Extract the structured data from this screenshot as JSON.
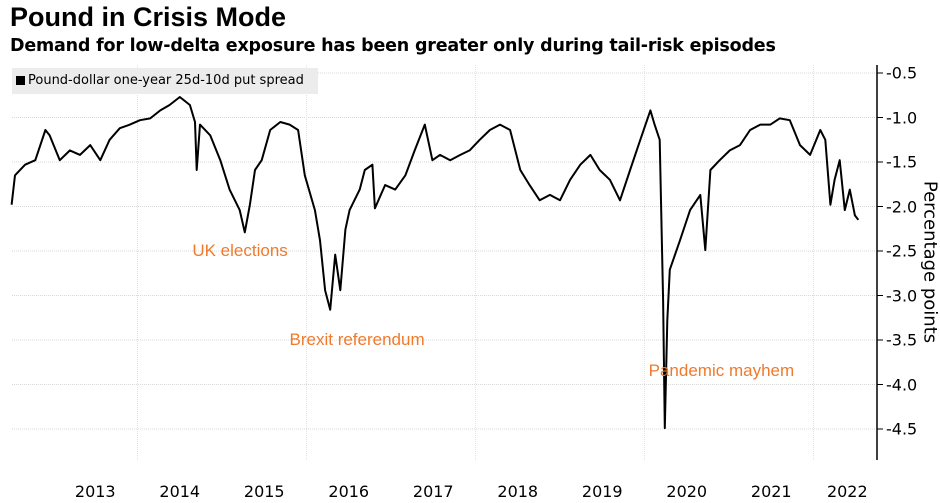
{
  "chart_data": {
    "type": "line",
    "title": "Pound in Crisis Mode",
    "subtitle": "Demand for low-delta exposure has been greater only during tail-risk episodes",
    "legend": [
      "Pound-dollar one-year 25d-10d put spread"
    ],
    "legend_placement": "top-left",
    "ylabel": "Percentage points",
    "xlabel": "",
    "ylim": [
      -4.85,
      -0.4
    ],
    "xlim": [
      2012.5,
      2022.6
    ],
    "yticks": [
      "-0.5",
      "-1.0",
      "-1.5",
      "-2.0",
      "-2.5",
      "-3.0",
      "-3.5",
      "-4.0",
      "-4.5"
    ],
    "ytick_values": [
      -0.5,
      -1.0,
      -1.5,
      -2.0,
      -2.5,
      -3.0,
      -3.5,
      -4.0,
      -4.5
    ],
    "xticks": [
      "2013",
      "2014",
      "2015",
      "2016",
      "2017",
      "2018",
      "2019",
      "2020",
      "2021",
      "2022"
    ],
    "xtick_values": [
      2013.5,
      2014.5,
      2015.5,
      2016.5,
      2017.5,
      2018.5,
      2019.5,
      2020.5,
      2021.5,
      2022.4
    ],
    "grid": true,
    "series_color": "#000000",
    "annotation_color": "#f07a2c",
    "annotations": [
      {
        "text": "UK elections",
        "x": 2015.3,
        "y": -2.5
      },
      {
        "text": "Brexit referendum",
        "x": 2016.45,
        "y": -3.5
      },
      {
        "text": "Pandemic mayhem",
        "x": 2020.7,
        "y": -3.85
      }
    ],
    "series": [
      {
        "name": "Pound-dollar one-year 25d-10d put spread",
        "x": [
          2012.51,
          2012.55,
          2012.67,
          2012.79,
          2012.91,
          2012.96,
          2013.08,
          2013.2,
          2013.32,
          2013.44,
          2013.56,
          2013.67,
          2013.79,
          2013.91,
          2014.03,
          2014.15,
          2014.27,
          2014.38,
          2014.5,
          2014.62,
          2014.68,
          2014.7,
          2014.74,
          2014.86,
          2014.98,
          2015.09,
          2015.21,
          2015.27,
          2015.33,
          2015.39,
          2015.47,
          2015.57,
          2015.69,
          2015.8,
          2015.9,
          2015.98,
          2016.1,
          2016.16,
          2016.22,
          2016.28,
          2016.34,
          2016.4,
          2016.46,
          2016.51,
          2016.63,
          2016.69,
          2016.78,
          2016.81,
          2016.93,
          2017.05,
          2017.17,
          2017.28,
          2017.4,
          2017.49,
          2017.58,
          2017.7,
          2017.82,
          2017.93,
          2018.05,
          2018.17,
          2018.29,
          2018.41,
          2018.53,
          2018.64,
          2018.76,
          2018.88,
          2019.0,
          2019.12,
          2019.24,
          2019.36,
          2019.47,
          2019.59,
          2019.71,
          2019.83,
          2019.95,
          2020.07,
          2020.12,
          2020.18,
          2020.22,
          2020.24,
          2020.27,
          2020.3,
          2020.42,
          2020.54,
          2020.66,
          2020.72,
          2020.78,
          2020.89,
          2021.01,
          2021.13,
          2021.25,
          2021.37,
          2021.49,
          2021.6,
          2021.72,
          2021.84,
          2021.96,
          2022.08,
          2022.14,
          2022.2,
          2022.25,
          2022.31,
          2022.37,
          2022.43,
          2022.49,
          2022.53
        ],
        "values": [
          -1.98,
          -1.65,
          -1.53,
          -1.48,
          -1.14,
          -1.2,
          -1.48,
          -1.37,
          -1.42,
          -1.31,
          -1.48,
          -1.25,
          -1.12,
          -1.08,
          -1.03,
          -1.01,
          -0.92,
          -0.86,
          -0.77,
          -0.86,
          -1.05,
          -1.59,
          -1.08,
          -1.2,
          -1.48,
          -1.81,
          -2.04,
          -2.29,
          -1.98,
          -1.59,
          -1.48,
          -1.14,
          -1.05,
          -1.08,
          -1.14,
          -1.65,
          -2.04,
          -2.38,
          -2.94,
          -3.16,
          -2.54,
          -2.94,
          -2.26,
          -2.04,
          -1.81,
          -1.59,
          -1.53,
          -2.02,
          -1.76,
          -1.81,
          -1.65,
          -1.37,
          -1.08,
          -1.48,
          -1.42,
          -1.48,
          -1.42,
          -1.37,
          -1.25,
          -1.14,
          -1.08,
          -1.14,
          -1.59,
          -1.76,
          -1.93,
          -1.87,
          -1.93,
          -1.7,
          -1.53,
          -1.42,
          -1.59,
          -1.7,
          -1.93,
          -1.59,
          -1.25,
          -0.92,
          -1.08,
          -1.25,
          -3.05,
          -4.49,
          -3.28,
          -2.71,
          -2.38,
          -2.04,
          -1.87,
          -2.49,
          -1.59,
          -1.48,
          -1.37,
          -1.31,
          -1.14,
          -1.08,
          -1.08,
          -1.01,
          -1.03,
          -1.31,
          -1.42,
          -1.14,
          -1.25,
          -1.98,
          -1.7,
          -1.48,
          -2.04,
          -1.81,
          -2.1,
          -2.15
        ]
      }
    ]
  }
}
